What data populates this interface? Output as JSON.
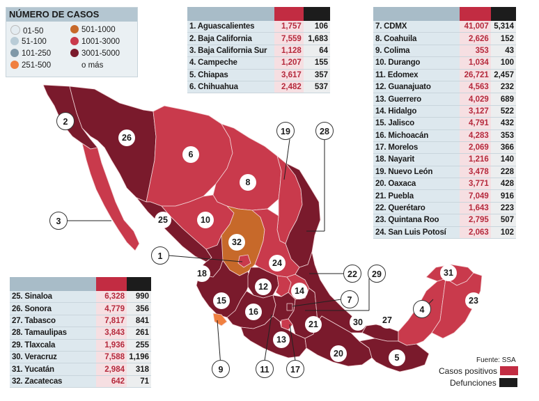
{
  "legend": {
    "title": "NÚMERO DE CASOS",
    "items": [
      {
        "label": "01-50",
        "color": "#e4ecf1"
      },
      {
        "label": "51-100",
        "color": "#b9ccd7"
      },
      {
        "label": "101-250",
        "color": "#7f98a8"
      },
      {
        "label": "251-500",
        "color": "#f08040"
      },
      {
        "label": "501-1000",
        "color": "#c7692a"
      },
      {
        "label": "1001-3000",
        "color": "#c93a4c"
      },
      {
        "label": "3001-5000",
        "color": "#7a1a2c"
      },
      {
        "label": "o más",
        "color": ""
      }
    ]
  },
  "table_a": [
    {
      "name": "1. Aguascalientes",
      "cases": "1,757",
      "deaths": "106"
    },
    {
      "name": "2. Baja California",
      "cases": "7,559",
      "deaths": "1,683"
    },
    {
      "name": "3. Baja California Sur",
      "cases": "1,128",
      "deaths": "64"
    },
    {
      "name": "4. Campeche",
      "cases": "1,207",
      "deaths": "155"
    },
    {
      "name": "5. Chiapas",
      "cases": "3,617",
      "deaths": "357"
    },
    {
      "name": "6. Chihuahua",
      "cases": "2,482",
      "deaths": "537"
    }
  ],
  "table_b": [
    {
      "name": "7. CDMX",
      "cases": "41,007",
      "deaths": "5,314"
    },
    {
      "name": "8. Coahuila",
      "cases": "2,626",
      "deaths": "152"
    },
    {
      "name": "9. Colima",
      "cases": "353",
      "deaths": "43"
    },
    {
      "name": "10. Durango",
      "cases": "1,034",
      "deaths": "100"
    },
    {
      "name": "11. Edomex",
      "cases": "26,721",
      "deaths": "2,457"
    },
    {
      "name": "12. Guanajuato",
      "cases": "4,563",
      "deaths": "232"
    },
    {
      "name": "13. Guerrero",
      "cases": "4,029",
      "deaths": "689"
    },
    {
      "name": "14. Hidalgo",
      "cases": "3,127",
      "deaths": "522"
    },
    {
      "name": "15. Jalisco",
      "cases": "4,791",
      "deaths": "432"
    },
    {
      "name": "16. Michoacán",
      "cases": "4,283",
      "deaths": "353"
    },
    {
      "name": "17. Morelos",
      "cases": "2,069",
      "deaths": "366"
    },
    {
      "name": "18. Nayarit",
      "cases": "1,216",
      "deaths": "140"
    },
    {
      "name": "19. Nuevo León",
      "cases": "3,478",
      "deaths": "228"
    },
    {
      "name": "20. Oaxaca",
      "cases": "3,771",
      "deaths": "428"
    },
    {
      "name": "21. Puebla",
      "cases": "7,049",
      "deaths": "916"
    },
    {
      "name": "22. Querétaro",
      "cases": "1,643",
      "deaths": "223"
    },
    {
      "name": "23. Quintana Roo",
      "cases": "2,795",
      "deaths": "507"
    },
    {
      "name": "24. San Luis Potosí",
      "cases": "2,063",
      "deaths": "102"
    }
  ],
  "table_c": [
    {
      "name": "25. Sinaloa",
      "cases": "6,328",
      "deaths": "990"
    },
    {
      "name": "26. Sonora",
      "cases": "4,779",
      "deaths": "356"
    },
    {
      "name": "27. Tabasco",
      "cases": "7,817",
      "deaths": "841"
    },
    {
      "name": "28. Tamaulipas",
      "cases": "3,843",
      "deaths": "261"
    },
    {
      "name": "29. Tlaxcala",
      "cases": "1,936",
      "deaths": "255"
    },
    {
      "name": "30. Veracruz",
      "cases": "7,588",
      "deaths": "1,196"
    },
    {
      "name": "31. Yucatán",
      "cases": "2,984",
      "deaths": "318"
    },
    {
      "name": "32. Zacatecas",
      "cases": "642",
      "deaths": "71"
    }
  ],
  "map_labels": [
    "1",
    "2",
    "3",
    "4",
    "5",
    "6",
    "7",
    "8",
    "9",
    "10",
    "11",
    "12",
    "13",
    "14",
    "15",
    "16",
    "17",
    "18",
    "19",
    "20",
    "21",
    "22",
    "23",
    "24",
    "25",
    "26",
    "27",
    "28",
    "29",
    "30",
    "31",
    "32"
  ],
  "source": "Fuente: SSA",
  "key": {
    "cases_label": "Casos positivos",
    "deaths_label": "Defunciones",
    "cases_color": "#c22c42",
    "deaths_color": "#1c1c1c"
  },
  "map_colors": {
    "dark": "#7a1a2c",
    "red": "#c93a4c",
    "orange": "#c7692a",
    "light_orange": "#f08040"
  }
}
